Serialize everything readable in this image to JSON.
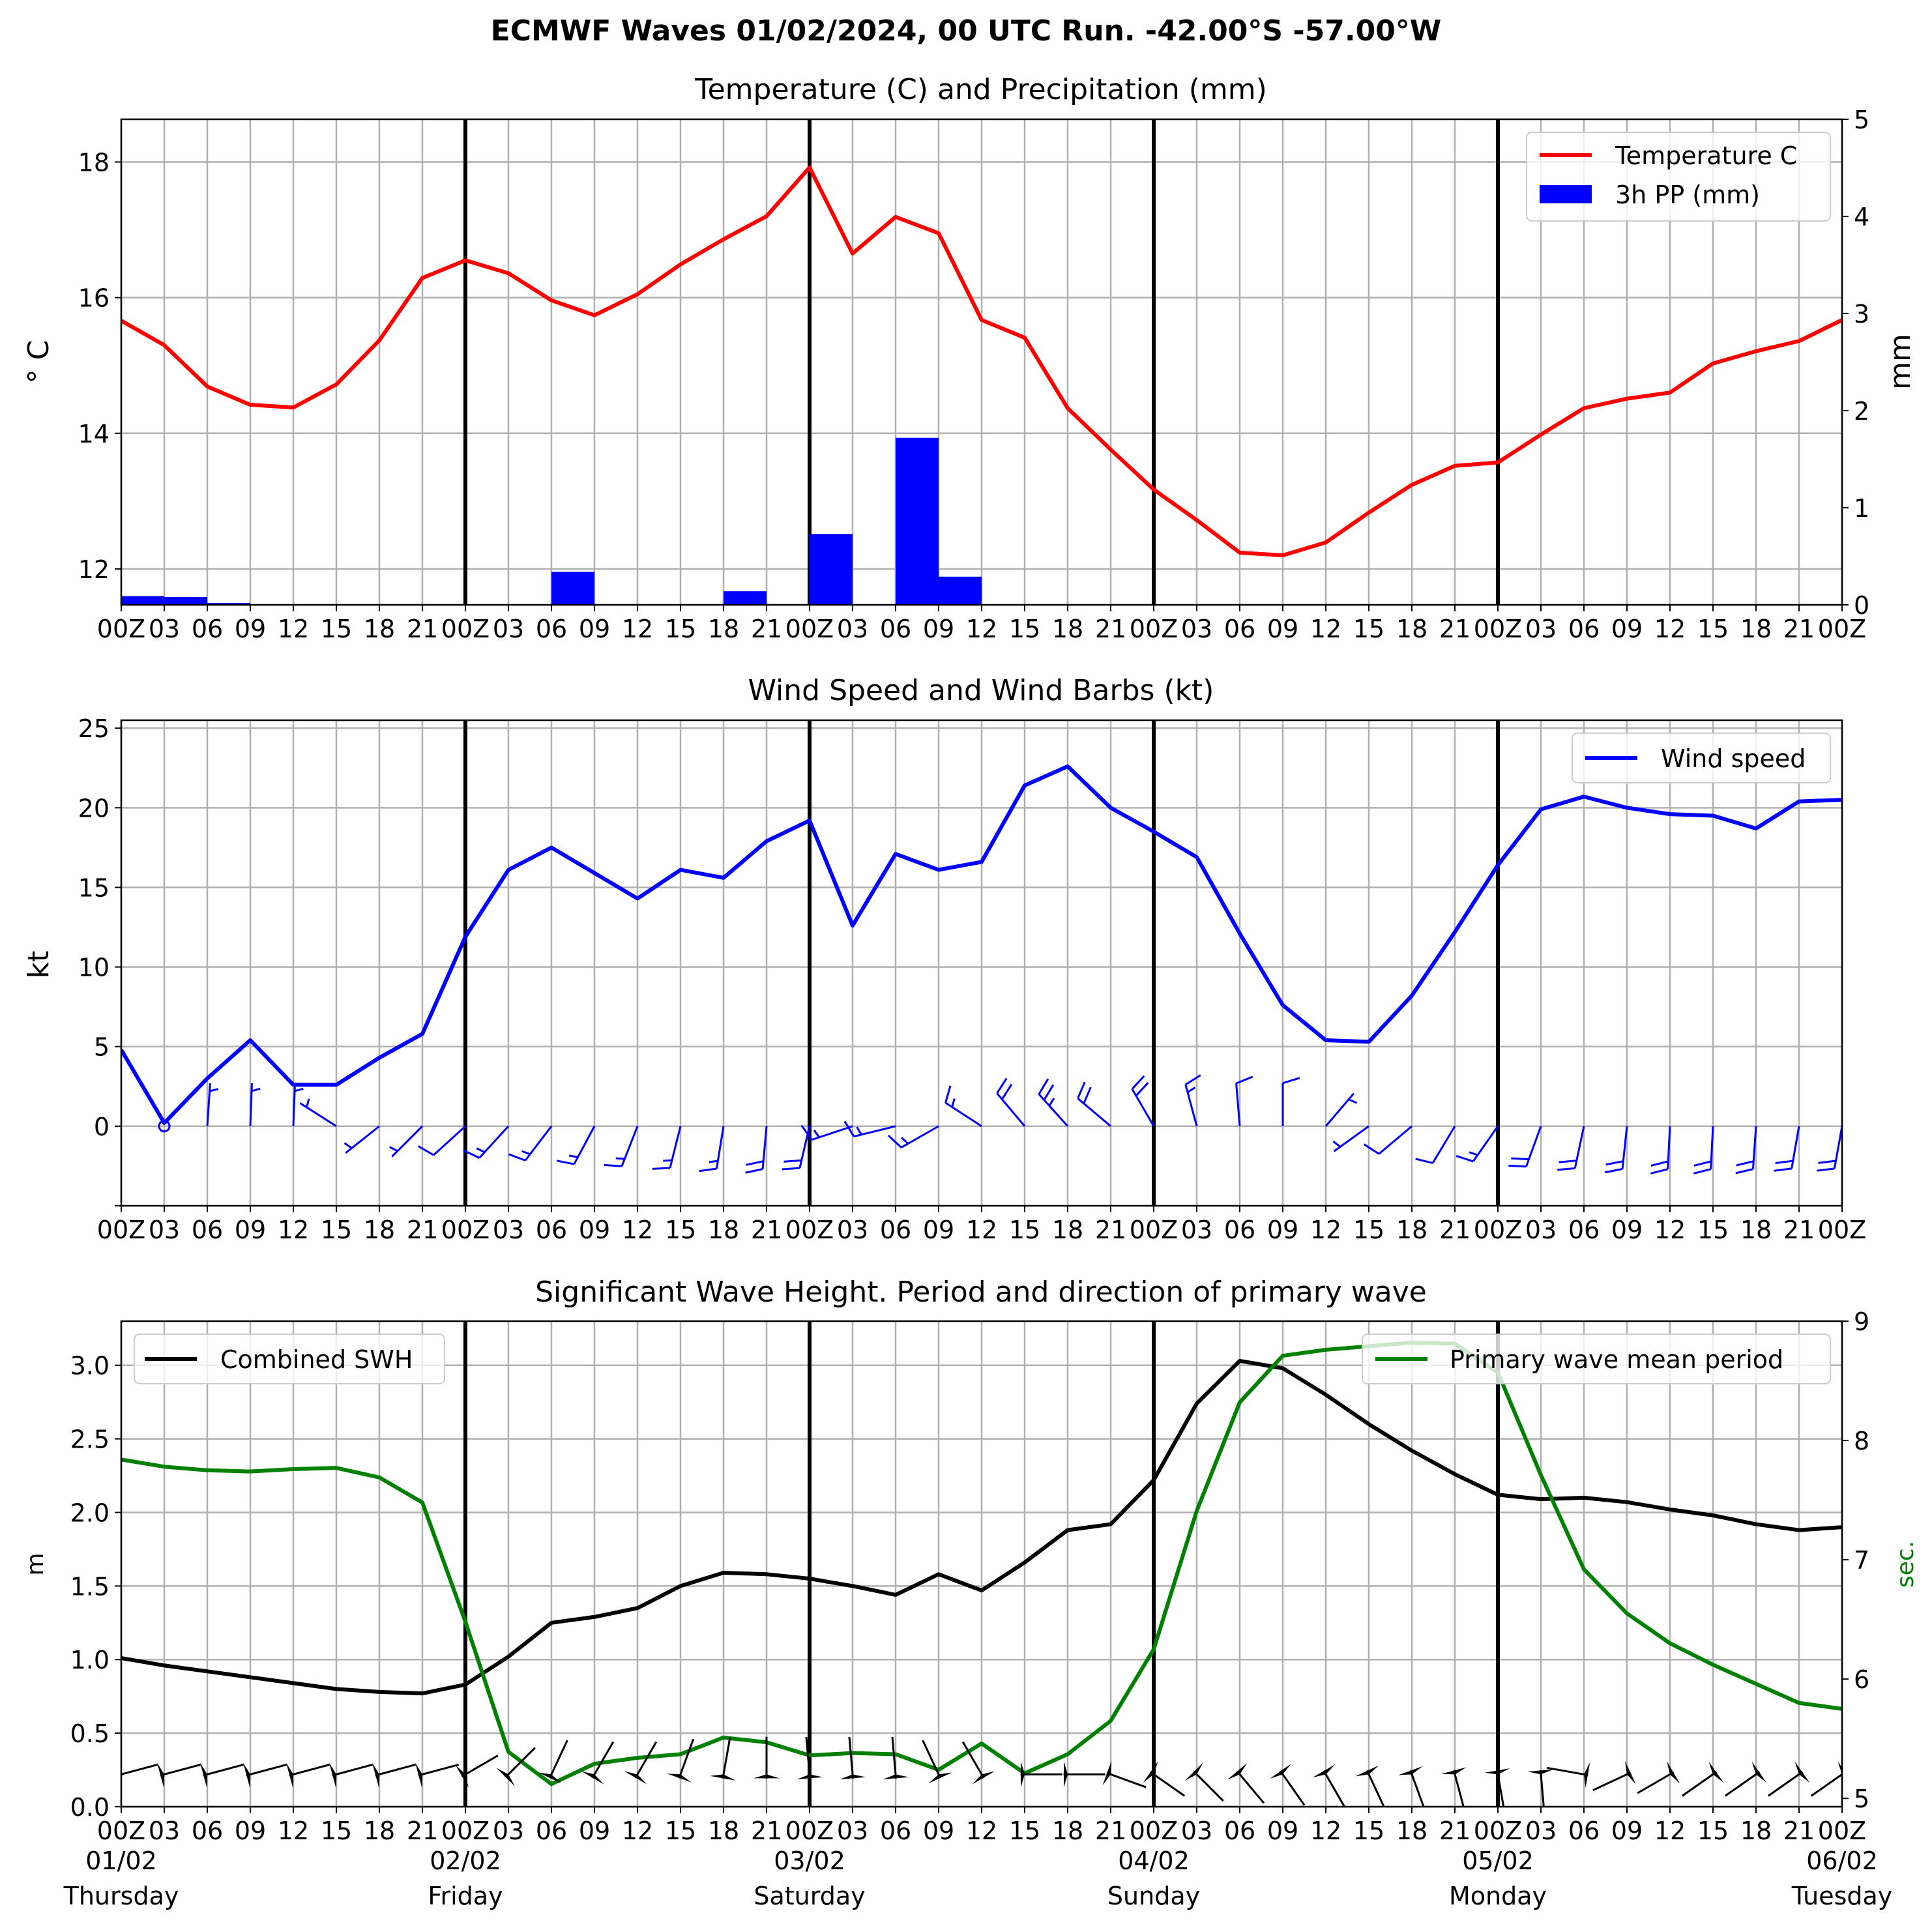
{
  "figure": {
    "title": "ECMWF Waves 01/02/2024, 00 UTC Run. -42.00°S -57.00°W"
  },
  "x_axis": {
    "tick_labels": [
      "00Z",
      "03",
      "06",
      "09",
      "12",
      "15",
      "18",
      "21",
      "00Z",
      "03",
      "06",
      "09",
      "12",
      "15",
      "18",
      "21",
      "00Z",
      "03",
      "06",
      "09",
      "12",
      "15",
      "18",
      "21",
      "00Z",
      "03",
      "06",
      "09",
      "12",
      "15",
      "18",
      "21",
      "00Z",
      "03",
      "06",
      "09",
      "12",
      "15",
      "18",
      "21",
      "00Z"
    ],
    "day_labels": [
      {
        "date": "01/02",
        "weekday": "Thursday",
        "index": 0
      },
      {
        "date": "02/02",
        "weekday": "Friday",
        "index": 8
      },
      {
        "date": "03/02",
        "weekday": "Saturday",
        "index": 16
      },
      {
        "date": "04/02",
        "weekday": "Sunday",
        "index": 24
      },
      {
        "date": "05/02",
        "weekday": "Monday",
        "index": 32
      },
      {
        "date": "06/02",
        "weekday": "Tuesday",
        "index": 40
      }
    ]
  },
  "colors": {
    "temperature": "#ff0000",
    "precip": "#0000ff",
    "wind": "#0000ff",
    "swh": "#000000",
    "period": "#008000",
    "grid": "#b0b0b0"
  },
  "chart_data": [
    {
      "type": "line",
      "title": "Temperature (C) and Precipitation (mm)",
      "x": [
        0,
        3,
        6,
        9,
        12,
        15,
        18,
        21,
        24,
        27,
        30,
        33,
        36,
        39,
        42,
        45,
        48,
        51,
        54,
        57,
        60,
        63,
        66,
        69,
        72,
        75,
        78,
        81,
        84,
        87,
        90,
        93,
        96,
        99,
        102,
        105,
        108,
        111,
        114,
        117,
        120
      ],
      "ylabel": "° C",
      "ylabel_right": "mm",
      "ylim": [
        11.47,
        18.63
      ],
      "yticks": [
        12,
        14,
        16,
        18
      ],
      "ylim_right": [
        0,
        5
      ],
      "yticks_right": [
        0,
        1,
        2,
        3,
        4,
        5
      ],
      "legend_loc": "upper right",
      "grid": true,
      "series": [
        {
          "name": "Temperature C",
          "kind": "line",
          "values": [
            15.66,
            15.3,
            14.69,
            14.42,
            14.38,
            14.72,
            15.37,
            16.29,
            16.55,
            16.36,
            15.96,
            15.74,
            16.05,
            16.49,
            16.86,
            17.2,
            17.92,
            16.65,
            17.19,
            16.95,
            15.67,
            15.41,
            14.37,
            13.76,
            13.17,
            12.72,
            12.24,
            12.2,
            12.39,
            12.83,
            13.24,
            13.52,
            13.57,
            13.98,
            14.37,
            14.51,
            14.6,
            15.03,
            15.21,
            15.36,
            15.67
          ]
        },
        {
          "name": "3h PP (mm)",
          "kind": "bar",
          "axis": "right",
          "values": [
            0.09,
            0.08,
            0.02,
            0,
            0,
            0,
            0,
            0,
            0,
            0,
            0.34,
            0,
            0,
            0,
            0.14,
            0,
            0.73,
            0,
            1.72,
            0.29,
            0,
            0,
            0,
            0,
            0,
            0,
            0,
            0,
            0,
            0,
            0,
            0,
            0,
            0,
            0,
            0,
            0,
            0,
            0,
            0,
            0
          ]
        }
      ]
    },
    {
      "type": "line",
      "title": "Wind Speed and Wind Barbs (kt)",
      "x": [
        0,
        3,
        6,
        9,
        12,
        15,
        18,
        21,
        24,
        27,
        30,
        33,
        36,
        39,
        42,
        45,
        48,
        51,
        54,
        57,
        60,
        63,
        66,
        69,
        72,
        75,
        78,
        81,
        84,
        87,
        90,
        93,
        96,
        99,
        102,
        105,
        108,
        111,
        114,
        117,
        120
      ],
      "ylabel": "kt",
      "ylim": [
        -5,
        25.5
      ],
      "yticks": [
        0,
        5,
        10,
        15,
        20,
        25
      ],
      "legend_loc": "upper right",
      "grid": true,
      "series": [
        {
          "name": "Wind speed",
          "values": [
            4.8,
            0.2,
            3.0,
            5.4,
            2.6,
            2.6,
            4.3,
            5.8,
            11.9,
            16.1,
            17.5,
            15.9,
            14.3,
            16.1,
            15.6,
            17.9,
            19.2,
            12.6,
            17.1,
            16.1,
            16.6,
            21.4,
            22.6,
            20.0,
            18.5,
            16.9,
            12.1,
            7.6,
            5.4,
            5.3,
            8.2,
            12.2,
            16.4,
            19.9,
            20.7,
            20.0,
            19.6,
            19.5,
            18.7,
            20.4,
            20.5
          ]
        }
      ],
      "barbs": [
        {
          "u": -4.5,
          "v": -1.7
        },
        {
          "u": 0.1,
          "v": 0.2
        },
        {
          "u": 0.2,
          "v": 3.0
        },
        {
          "u": 0.2,
          "v": 5.4
        },
        {
          "u": 0.1,
          "v": 2.6
        },
        {
          "u": -2.2,
          "v": 1.4
        },
        {
          "u": -3.4,
          "v": -2.7
        },
        {
          "u": -4.1,
          "v": -4.1
        },
        {
          "u": -8.8,
          "v": -8.0
        },
        {
          "u": -10.9,
          "v": -11.9
        },
        {
          "u": -10.6,
          "v": -13.9
        },
        {
          "u": -7.5,
          "v": -14.0
        },
        {
          "u": -5.2,
          "v": -13.3
        },
        {
          "u": -3.9,
          "v": -15.6
        },
        {
          "u": -2.5,
          "v": -15.4
        },
        {
          "u": -1.6,
          "v": -17.8
        },
        {
          "u": -4.4,
          "v": -18.7
        },
        {
          "u": -12.0,
          "v": -4.0
        },
        {
          "u": -16.6,
          "v": -4.1
        },
        {
          "u": -14.0,
          "v": -8.0
        },
        {
          "u": -13.9,
          "v": 9.0
        },
        {
          "u": -13.8,
          "v": 16.4
        },
        {
          "u": -15.1,
          "v": 16.8
        },
        {
          "u": -15.3,
          "v": 12.9
        },
        {
          "u": -9.3,
          "v": 16.0
        },
        {
          "u": -4.4,
          "v": 16.3
        },
        {
          "u": -1.0,
          "v": 12.1
        },
        {
          "u": 0.0,
          "v": 7.6
        },
        {
          "u": 3.5,
          "v": 4.1
        },
        {
          "u": -4.3,
          "v": -3.1
        },
        {
          "u": -6.3,
          "v": -5.3
        },
        {
          "u": -6.3,
          "v": -10.5
        },
        {
          "u": -9.4,
          "v": -13.4
        },
        {
          "u": -6.8,
          "v": -18.7
        },
        {
          "u": -4.3,
          "v": -20.2
        },
        {
          "u": -2.1,
          "v": -19.9
        },
        {
          "u": -1.0,
          "v": -19.6
        },
        {
          "u": -1.0,
          "v": -19.5
        },
        {
          "u": -1.3,
          "v": -18.7
        },
        {
          "u": -3.5,
          "v": -20.1
        },
        {
          "u": -3.6,
          "v": -20.2
        }
      ]
    },
    {
      "type": "line",
      "title": "Significant Wave Height. Period and direction of primary wave",
      "x": [
        0,
        3,
        6,
        9,
        12,
        15,
        18,
        21,
        24,
        27,
        30,
        33,
        36,
        39,
        42,
        45,
        48,
        51,
        54,
        57,
        60,
        63,
        66,
        69,
        72,
        75,
        78,
        81,
        84,
        87,
        90,
        93,
        96,
        99,
        102,
        105,
        108,
        111,
        114,
        117,
        120
      ],
      "ylabel": "m",
      "ylabel_right": "sec.",
      "ylim": [
        0,
        3.3
      ],
      "yticks": [
        0.0,
        0.5,
        1.0,
        1.5,
        2.0,
        2.5,
        3.0
      ],
      "ylim_right": [
        4.93,
        9.0
      ],
      "yticks_right": [
        5,
        6,
        7,
        8,
        9
      ],
      "grid": true,
      "series": [
        {
          "name": "Combined SWH",
          "legend_loc": "upper left",
          "values": [
            1.01,
            0.96,
            0.92,
            0.88,
            0.84,
            0.8,
            0.78,
            0.77,
            0.83,
            1.02,
            1.25,
            1.29,
            1.35,
            1.5,
            1.59,
            1.58,
            1.55,
            1.5,
            1.44,
            1.58,
            1.47,
            1.66,
            1.88,
            1.92,
            2.22,
            2.74,
            3.03,
            2.98,
            2.8,
            2.6,
            2.42,
            2.26,
            2.12,
            2.09,
            2.1,
            2.07,
            2.02,
            1.98,
            1.92,
            1.88,
            1.9
          ]
        },
        {
          "name": "Primary wave mean period",
          "axis": "right",
          "legend_loc": "upper right",
          "values": [
            7.84,
            7.78,
            7.75,
            7.74,
            7.76,
            7.77,
            7.69,
            7.48,
            6.48,
            5.39,
            5.12,
            5.29,
            5.34,
            5.37,
            5.51,
            5.47,
            5.36,
            5.38,
            5.37,
            5.24,
            5.46,
            5.21,
            5.37,
            5.65,
            6.25,
            7.41,
            8.32,
            8.71,
            8.76,
            8.79,
            8.82,
            8.81,
            8.57,
            7.71,
            6.92,
            6.55,
            6.3,
            6.12,
            5.96,
            5.8,
            5.75
          ]
        }
      ],
      "direction_arrows_deg": [
        255,
        255,
        255,
        255,
        255,
        255,
        255,
        255,
        240,
        225,
        205,
        210,
        210,
        200,
        190,
        180,
        175,
        175,
        175,
        155,
        150,
        270,
        270,
        290,
        305,
        315,
        320,
        325,
        330,
        335,
        340,
        345,
        350,
        355,
        100,
        65,
        60,
        55,
        55,
        55,
        55
      ]
    }
  ]
}
